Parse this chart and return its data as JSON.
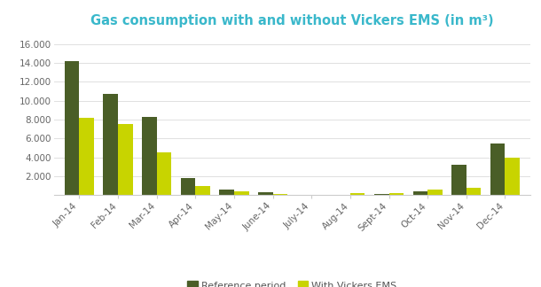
{
  "title": "Gas consumption with and without Vickers EMS (in m³)",
  "categories": [
    "Jan-14",
    "Feb-14",
    "Mar-14",
    "Apr-14",
    "May-14",
    "June-14",
    "July-14",
    "Aug-14",
    "Sept-14",
    "Oct-14",
    "Nov-14",
    "Dec-14"
  ],
  "reference_values": [
    14200,
    10750,
    8250,
    1800,
    550,
    350,
    50,
    50,
    150,
    400,
    3250,
    5450
  ],
  "vickers_values": [
    8200,
    7500,
    4500,
    950,
    400,
    150,
    50,
    200,
    250,
    550,
    800,
    4000
  ],
  "reference_color": "#4a5e27",
  "vickers_color": "#c8d400",
  "title_color": "#3ab8cb",
  "legend_ref": "Reference period",
  "legend_vickers": "With Vickers EMS",
  "ylim": [
    0,
    17000
  ],
  "yticks": [
    0,
    2000,
    4000,
    6000,
    8000,
    10000,
    12000,
    14000,
    16000
  ],
  "ytick_labels": [
    "",
    "2.000",
    "4.000",
    "6.000",
    "8.000",
    "10.000",
    "12.000",
    "14.000",
    "16.000"
  ],
  "background_color": "#ffffff",
  "bar_width": 0.38
}
